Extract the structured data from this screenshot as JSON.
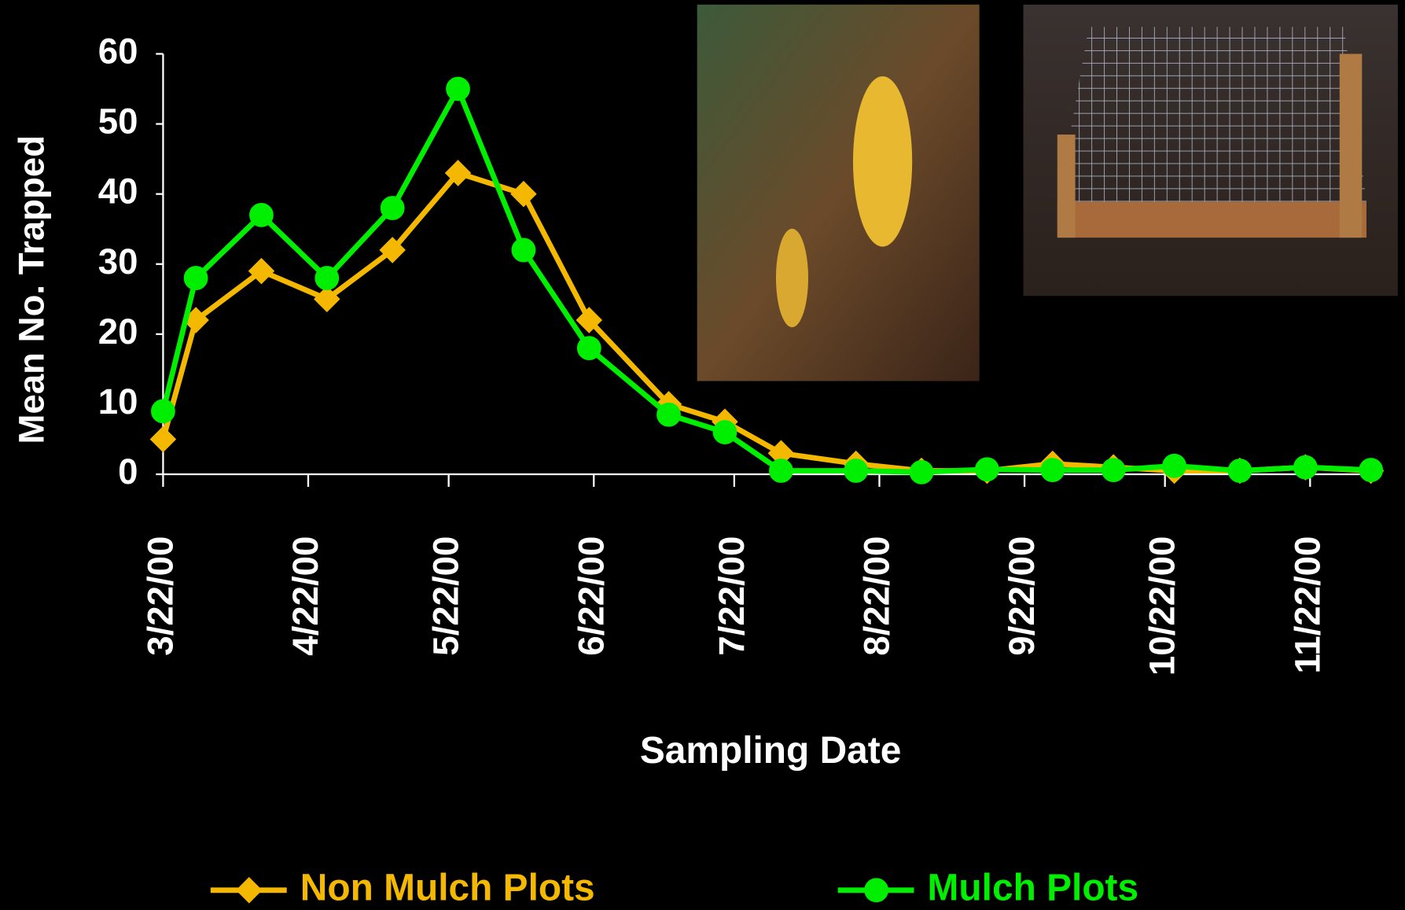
{
  "chart_data": {
    "type": "line",
    "y_label": "Mean No. Trapped",
    "x_label": "Sampling Date",
    "x": [
      "3/22/00",
      "3/29/00",
      "4/12/00",
      "4/26/00",
      "5/10/00",
      "5/24/00",
      "6/7/00",
      "6/21/00",
      "7/8/00",
      "7/20/00",
      "8/1/00",
      "8/17/00",
      "8/31/00",
      "9/14/00",
      "9/28/00",
      "10/11/00",
      "10/24/00",
      "11/7/00",
      "11/21/00",
      "12/5/00"
    ],
    "xlim": [
      "3/22/00",
      "12/5/00"
    ],
    "xticks": [
      "3/22/00",
      "4/22/00",
      "5/22/00",
      "6/22/00",
      "7/22/00",
      "8/22/00",
      "9/22/00",
      "10/22/00",
      "11/22/00"
    ],
    "ylim": [
      0,
      60
    ],
    "yticks": [
      0,
      10,
      20,
      30,
      40,
      50,
      60
    ],
    "series": [
      {
        "name": "Non Mulch Plots",
        "color": "#f5b800",
        "marker": "diamond",
        "values": [
          5,
          22,
          29,
          25,
          32,
          43,
          40,
          22,
          10,
          7.5,
          3,
          1.5,
          0.5,
          0.5,
          1.5,
          1,
          0.5,
          0.5,
          1,
          0.5
        ]
      },
      {
        "name": "Mulch Plots",
        "color": "#00ee00",
        "marker": "circle",
        "values": [
          9,
          28,
          37,
          28,
          38,
          55,
          32,
          18,
          8.5,
          6,
          0.5,
          0.5,
          0.3,
          0.7,
          0.6,
          0.6,
          1.2,
          0.5,
          1,
          0.6
        ]
      }
    ]
  }
}
